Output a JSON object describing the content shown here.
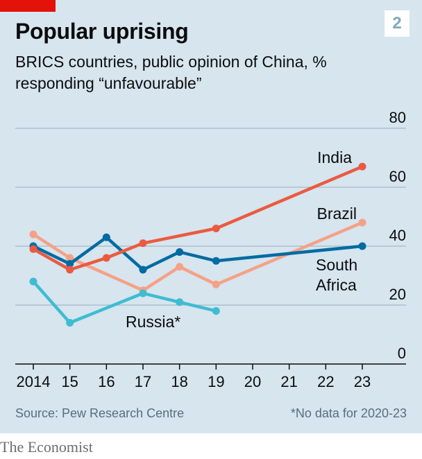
{
  "header": {
    "number": "2",
    "title": "Popular uprising",
    "subtitle": "BRICS countries, public opinion of China, % responding “unfavourable”"
  },
  "footer": {
    "source": "Source: Pew Research Centre",
    "note": "*No data for 2020-23",
    "brand": "The Economist"
  },
  "chart_data": {
    "type": "line",
    "x": [
      2014,
      2015,
      2016,
      2017,
      2018,
      2019,
      2020,
      2021,
      2022,
      2023
    ],
    "x_tick_labels": [
      "2014",
      "15",
      "16",
      "17",
      "18",
      "19",
      "20",
      "21",
      "22",
      "23"
    ],
    "ylim": [
      0,
      80
    ],
    "y_ticks": [
      0,
      20,
      40,
      60,
      80
    ],
    "grid": true,
    "series": [
      {
        "name": "Brazil",
        "color": "#f6a186",
        "x": [
          2014,
          2015,
          2017,
          2018,
          2019,
          2023
        ],
        "values": [
          44,
          36,
          25,
          33,
          27,
          48
        ]
      },
      {
        "name": "Russia*",
        "color": "#3ebcd2",
        "x": [
          2014,
          2015,
          2017,
          2018,
          2019
        ],
        "values": [
          28,
          14,
          24,
          21,
          18
        ]
      },
      {
        "name": "South Africa",
        "color": "#006ba2",
        "x": [
          2014,
          2015,
          2016,
          2017,
          2018,
          2019,
          2023
        ],
        "values": [
          40,
          34,
          43,
          32,
          38,
          35,
          40
        ]
      },
      {
        "name": "India",
        "color": "#eb5a40",
        "x": [
          2014,
          2015,
          2016,
          2017,
          2019,
          2023
        ],
        "values": [
          39,
          32,
          36,
          41,
          46,
          67
        ]
      }
    ]
  }
}
